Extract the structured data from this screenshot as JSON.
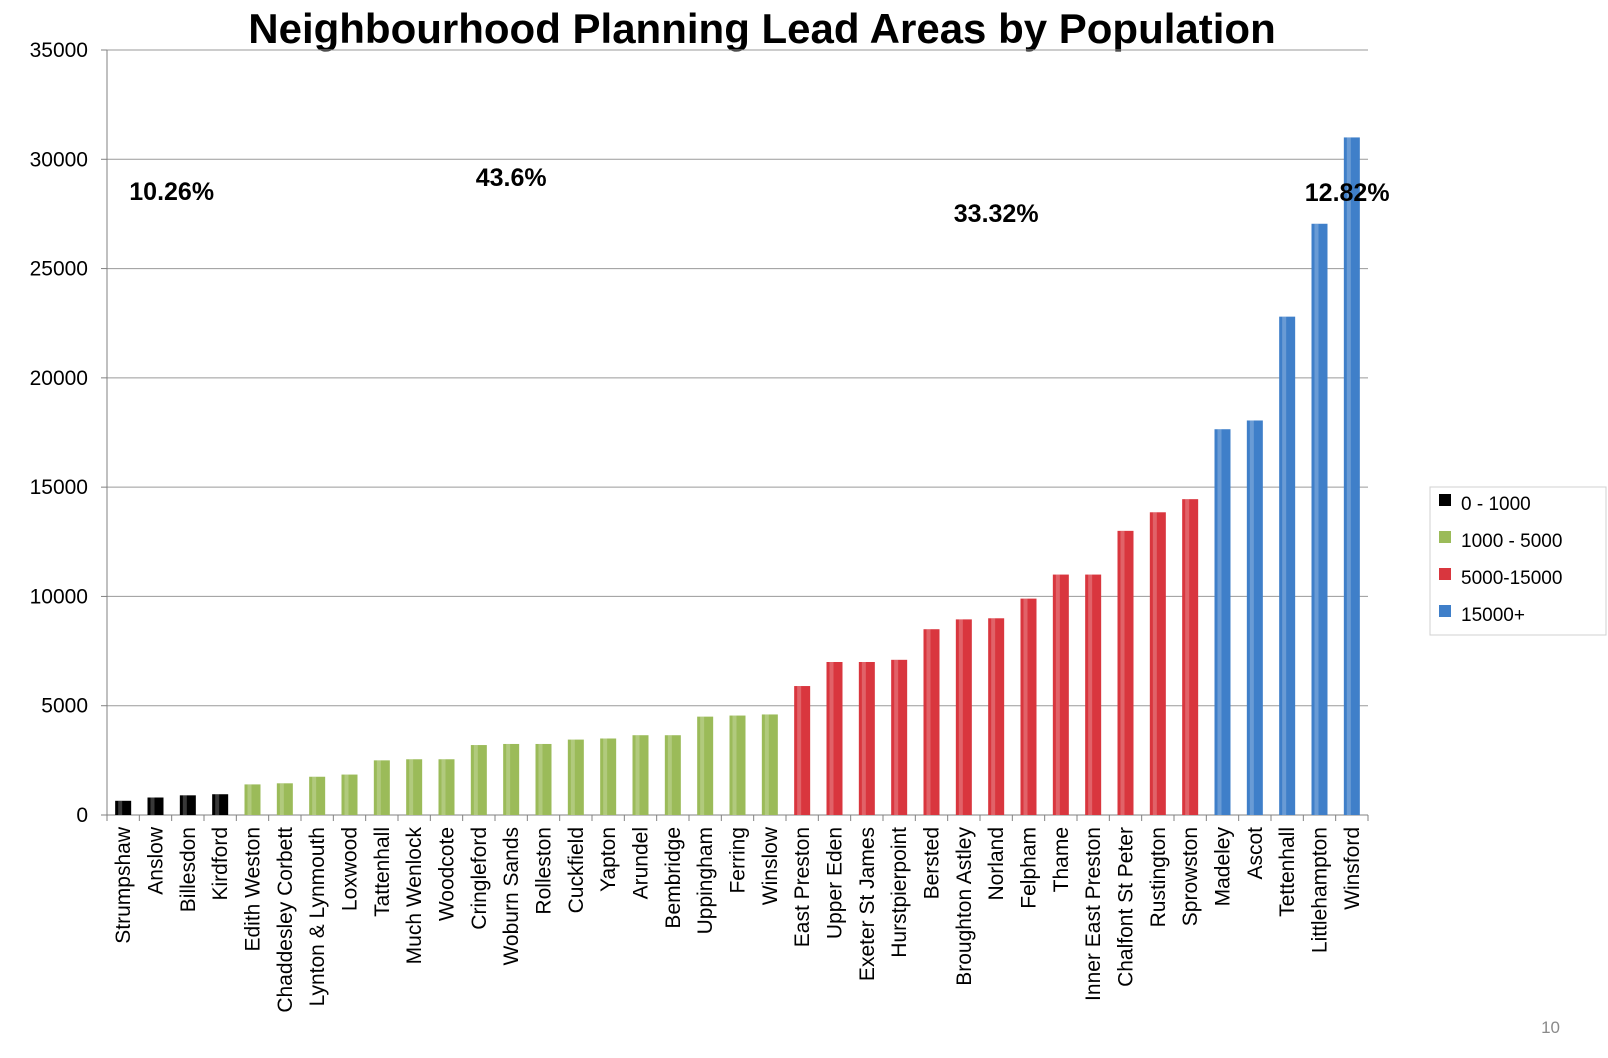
{
  "slide_number": "10",
  "chart_data": {
    "type": "bar",
    "title": "Neighbourhood Planning  Lead Areas by Population",
    "xlabel": "",
    "ylabel": "",
    "ylim": [
      0,
      35000
    ],
    "yticks": [
      0,
      5000,
      10000,
      15000,
      20000,
      25000,
      30000,
      35000
    ],
    "grid": true,
    "legend_position": "right",
    "categories": [
      "Strumpshaw",
      "Anslow",
      "Billesdon",
      "Kirdford",
      "Edith Weston",
      "Chaddesley Corbett",
      "Lynton & Lynmouth",
      "Loxwood",
      "Tattenhall",
      "Much Wenlock",
      "Woodcote",
      "Cringleford",
      "Woburn Sands",
      "Rolleston",
      "Cuckfield",
      "Yapton",
      "Arundel",
      "Bembridge",
      "Uppingham",
      "Ferring",
      "Winslow",
      "East Preston",
      "Upper Eden",
      "Exeter St James",
      "Hurstpierpoint",
      "Bersted",
      "Broughton Astley",
      "Norland",
      "Felpham",
      "Thame",
      "Inner East Preston",
      "Chalfont St Peter",
      "Rustington",
      "Sprowston",
      "Madeley",
      "Ascot",
      "Tettenhall",
      "Littlehampton",
      "Winsford"
    ],
    "values": [
      650,
      800,
      900,
      950,
      1400,
      1450,
      1750,
      1850,
      2500,
      2550,
      2550,
      3200,
      3250,
      3250,
      3450,
      3500,
      3650,
      3650,
      4500,
      4550,
      4600,
      5900,
      7000,
      7000,
      7100,
      8500,
      8950,
      9000,
      9900,
      11000,
      11000,
      13000,
      13850,
      14450,
      17650,
      18050,
      22800,
      27050,
      31000
    ],
    "groups": [
      0,
      0,
      0,
      0,
      1,
      1,
      1,
      1,
      1,
      1,
      1,
      1,
      1,
      1,
      1,
      1,
      1,
      1,
      1,
      1,
      1,
      2,
      2,
      2,
      2,
      2,
      2,
      2,
      2,
      2,
      2,
      2,
      2,
      2,
      3,
      3,
      3,
      3,
      3
    ],
    "series": [
      {
        "name": "0 - 1000",
        "color": "#000000"
      },
      {
        "name": "1000 - 5000",
        "color": "#9bbb59"
      },
      {
        "name": "5000-15000",
        "color": "#d9363e"
      },
      {
        "name": "15000+",
        "color": "#3f7fc9"
      }
    ],
    "annotations": [
      {
        "text": "10.26%",
        "group": 0
      },
      {
        "text": "43.6%",
        "group": 1
      },
      {
        "text": "33.32%",
        "group": 2
      },
      {
        "text": "12.82%",
        "group": 3
      }
    ]
  }
}
